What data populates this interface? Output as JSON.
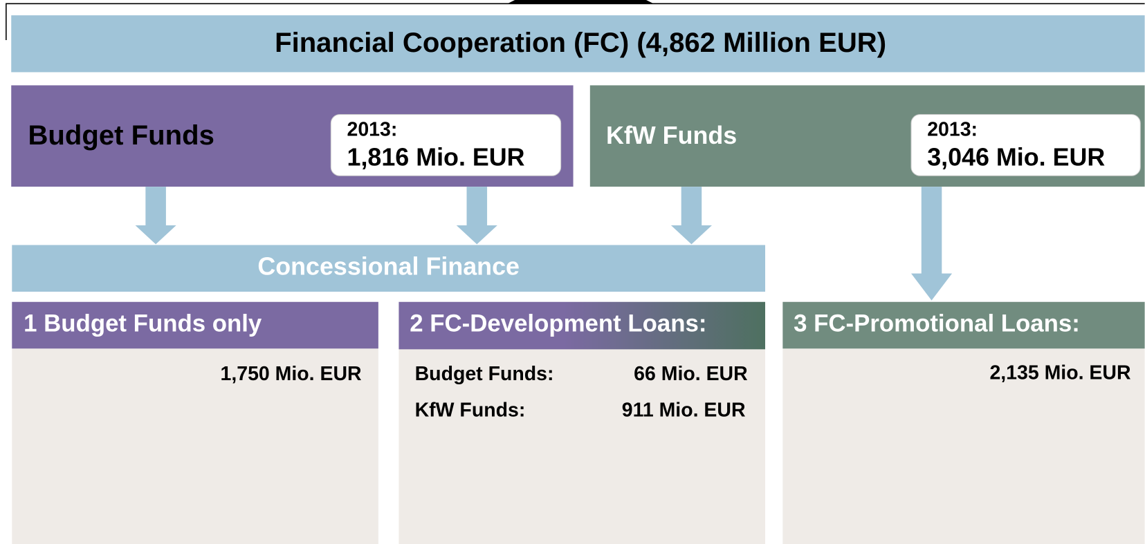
{
  "header": {
    "title": "Financial Cooperation (FC)  (4,862 Million EUR)"
  },
  "sources": [
    {
      "label": "Budget Funds",
      "year": "2013:",
      "amount": "1,816 Mio. EUR"
    },
    {
      "label": "KfW Funds",
      "year": "2013:",
      "amount": "3,046 Mio. EUR"
    }
  ],
  "concessional": "Concessional Finance",
  "columns": [
    {
      "title": "1 Budget Funds only",
      "amount": "1,750 Mio. EUR"
    },
    {
      "title": "2 FC-Development Loans:",
      "lines": [
        {
          "label": "Budget Funds:",
          "amount": "66 Mio. EUR"
        },
        {
          "label": "KfW Funds:",
          "amount": "911 Mio. EUR"
        }
      ]
    },
    {
      "title": "3 FC-Promotional Loans:",
      "amount": "2,135 Mio. EUR"
    }
  ]
}
